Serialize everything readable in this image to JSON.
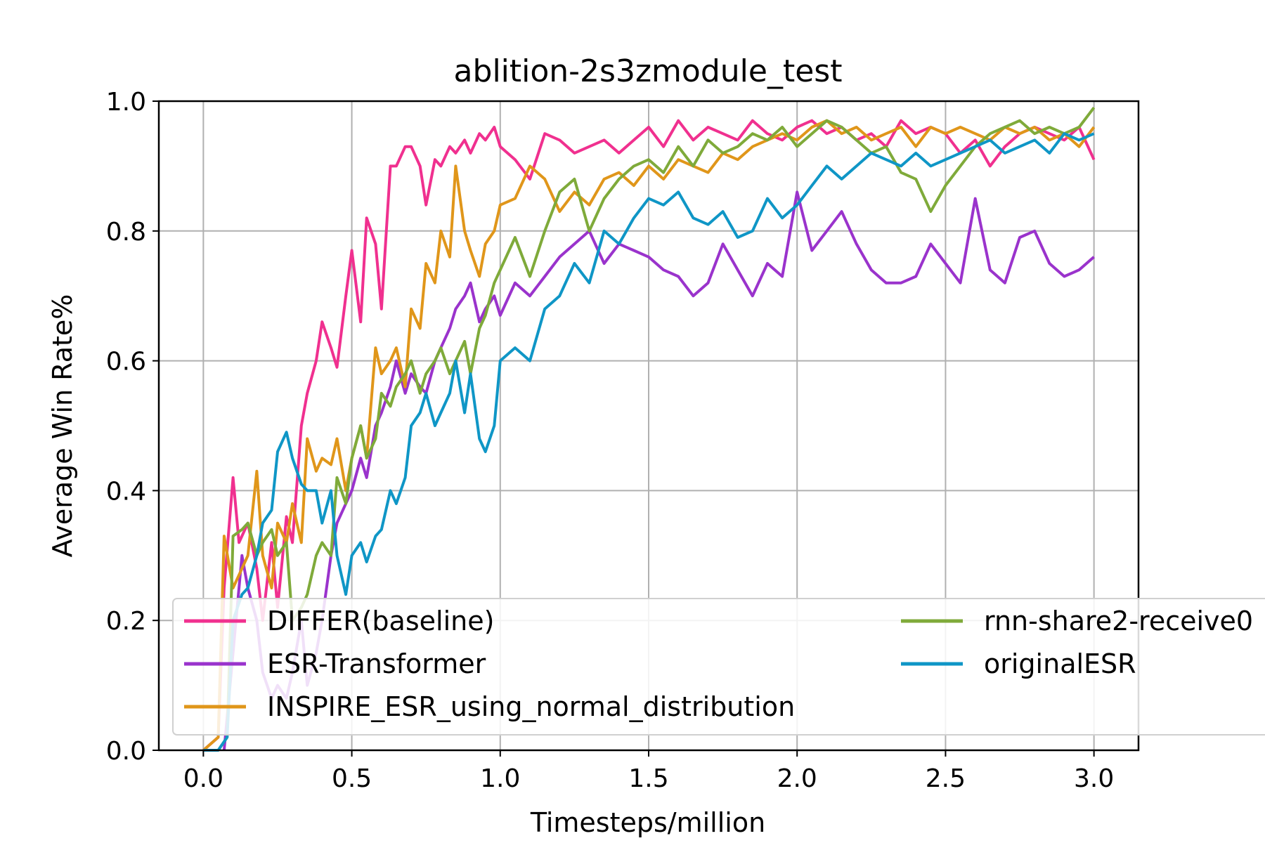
{
  "chart_data": {
    "type": "line",
    "title": "ablition-2s3zmodule_test",
    "xlabel": "Timesteps/million",
    "ylabel": "Average Win Rate%",
    "xlim": [
      -0.15,
      3.15
    ],
    "ylim": [
      0.0,
      1.0
    ],
    "xticks": [
      0.0,
      0.5,
      1.0,
      1.5,
      2.0,
      2.5,
      3.0
    ],
    "yticks": [
      0.0,
      0.2,
      0.4,
      0.6,
      0.8,
      1.0
    ],
    "xtick_labels": [
      "0.0",
      "0.5",
      "1.0",
      "1.5",
      "2.0",
      "2.5",
      "3.0"
    ],
    "ytick_labels": [
      "0.0",
      "0.2",
      "0.4",
      "0.6",
      "0.8",
      "1.0"
    ],
    "grid": true,
    "legend_position": "lower-left",
    "series": [
      {
        "name": "DIFFER(baseline)",
        "color": "#f0308f",
        "x": [
          0.0,
          0.05,
          0.07,
          0.1,
          0.12,
          0.15,
          0.18,
          0.2,
          0.23,
          0.25,
          0.28,
          0.3,
          0.33,
          0.35,
          0.38,
          0.4,
          0.43,
          0.45,
          0.48,
          0.5,
          0.53,
          0.55,
          0.58,
          0.6,
          0.63,
          0.65,
          0.68,
          0.7,
          0.73,
          0.75,
          0.78,
          0.8,
          0.83,
          0.85,
          0.88,
          0.9,
          0.93,
          0.95,
          0.98,
          1.0,
          1.05,
          1.1,
          1.15,
          1.2,
          1.25,
          1.3,
          1.35,
          1.4,
          1.45,
          1.5,
          1.55,
          1.6,
          1.65,
          1.7,
          1.75,
          1.8,
          1.85,
          1.9,
          1.95,
          2.0,
          2.05,
          2.1,
          2.15,
          2.2,
          2.25,
          2.3,
          2.35,
          2.4,
          2.45,
          2.5,
          2.55,
          2.6,
          2.65,
          2.7,
          2.75,
          2.8,
          2.85,
          2.9,
          2.95,
          3.0
        ],
        "values": [
          0.0,
          0.02,
          0.25,
          0.42,
          0.32,
          0.35,
          0.28,
          0.2,
          0.32,
          0.22,
          0.36,
          0.32,
          0.5,
          0.55,
          0.6,
          0.66,
          0.62,
          0.59,
          0.7,
          0.77,
          0.66,
          0.82,
          0.78,
          0.68,
          0.9,
          0.9,
          0.93,
          0.93,
          0.9,
          0.84,
          0.91,
          0.9,
          0.93,
          0.92,
          0.94,
          0.92,
          0.95,
          0.94,
          0.96,
          0.93,
          0.91,
          0.88,
          0.95,
          0.94,
          0.92,
          0.93,
          0.94,
          0.92,
          0.94,
          0.96,
          0.93,
          0.97,
          0.94,
          0.96,
          0.95,
          0.94,
          0.97,
          0.95,
          0.94,
          0.96,
          0.97,
          0.95,
          0.96,
          0.94,
          0.95,
          0.93,
          0.97,
          0.95,
          0.96,
          0.95,
          0.92,
          0.94,
          0.9,
          0.93,
          0.95,
          0.96,
          0.95,
          0.94,
          0.96,
          0.91
        ]
      },
      {
        "name": "ESR-Transformer",
        "color": "#9a33cc",
        "x": [
          0.07,
          0.1,
          0.13,
          0.15,
          0.18,
          0.2,
          0.23,
          0.25,
          0.28,
          0.3,
          0.33,
          0.35,
          0.38,
          0.4,
          0.43,
          0.45,
          0.48,
          0.5,
          0.53,
          0.55,
          0.58,
          0.6,
          0.63,
          0.65,
          0.68,
          0.7,
          0.73,
          0.75,
          0.78,
          0.8,
          0.83,
          0.85,
          0.88,
          0.9,
          0.93,
          0.95,
          0.98,
          1.0,
          1.05,
          1.1,
          1.15,
          1.2,
          1.25,
          1.3,
          1.35,
          1.4,
          1.45,
          1.5,
          1.55,
          1.6,
          1.65,
          1.7,
          1.75,
          1.8,
          1.85,
          1.9,
          1.95,
          2.0,
          2.05,
          2.1,
          2.15,
          2.2,
          2.25,
          2.3,
          2.35,
          2.4,
          2.45,
          2.5,
          2.55,
          2.6,
          2.65,
          2.7,
          2.75,
          2.8,
          2.85,
          2.9,
          2.95,
          3.0
        ],
        "values": [
          0.0,
          0.15,
          0.3,
          0.25,
          0.2,
          0.12,
          0.08,
          0.1,
          0.08,
          0.12,
          0.2,
          0.1,
          0.15,
          0.2,
          0.3,
          0.35,
          0.38,
          0.4,
          0.45,
          0.42,
          0.5,
          0.52,
          0.56,
          0.6,
          0.55,
          0.58,
          0.56,
          0.55,
          0.6,
          0.62,
          0.65,
          0.68,
          0.7,
          0.72,
          0.66,
          0.68,
          0.7,
          0.67,
          0.72,
          0.7,
          0.73,
          0.76,
          0.78,
          0.8,
          0.75,
          0.78,
          0.77,
          0.76,
          0.74,
          0.73,
          0.7,
          0.72,
          0.78,
          0.74,
          0.7,
          0.75,
          0.73,
          0.86,
          0.77,
          0.8,
          0.83,
          0.78,
          0.74,
          0.72,
          0.72,
          0.73,
          0.78,
          0.75,
          0.72,
          0.85,
          0.74,
          0.72,
          0.79,
          0.8,
          0.75,
          0.73,
          0.74,
          0.76
        ]
      },
      {
        "name": "INSPIRE_ESR_using_normal_distribution",
        "color": "#e0961a",
        "x": [
          0.0,
          0.05,
          0.07,
          0.1,
          0.13,
          0.15,
          0.18,
          0.2,
          0.23,
          0.25,
          0.28,
          0.3,
          0.33,
          0.35,
          0.38,
          0.4,
          0.43,
          0.45,
          0.48,
          0.5,
          0.53,
          0.55,
          0.58,
          0.6,
          0.63,
          0.65,
          0.68,
          0.7,
          0.73,
          0.75,
          0.78,
          0.8,
          0.83,
          0.85,
          0.88,
          0.9,
          0.93,
          0.95,
          0.98,
          1.0,
          1.05,
          1.1,
          1.15,
          1.2,
          1.25,
          1.3,
          1.35,
          1.4,
          1.45,
          1.5,
          1.55,
          1.6,
          1.65,
          1.7,
          1.75,
          1.8,
          1.85,
          1.9,
          1.95,
          2.0,
          2.05,
          2.1,
          2.15,
          2.2,
          2.25,
          2.3,
          2.35,
          2.4,
          2.45,
          2.5,
          2.55,
          2.6,
          2.65,
          2.7,
          2.75,
          2.8,
          2.85,
          2.9,
          2.95,
          3.0
        ],
        "values": [
          0.0,
          0.02,
          0.33,
          0.25,
          0.28,
          0.3,
          0.43,
          0.3,
          0.25,
          0.35,
          0.32,
          0.38,
          0.32,
          0.48,
          0.43,
          0.45,
          0.44,
          0.48,
          0.4,
          0.45,
          0.5,
          0.45,
          0.62,
          0.58,
          0.6,
          0.62,
          0.56,
          0.68,
          0.65,
          0.75,
          0.72,
          0.8,
          0.76,
          0.9,
          0.8,
          0.77,
          0.73,
          0.78,
          0.8,
          0.84,
          0.85,
          0.9,
          0.88,
          0.83,
          0.86,
          0.84,
          0.88,
          0.89,
          0.87,
          0.9,
          0.88,
          0.91,
          0.9,
          0.89,
          0.92,
          0.91,
          0.93,
          0.94,
          0.95,
          0.94,
          0.96,
          0.97,
          0.95,
          0.96,
          0.94,
          0.95,
          0.96,
          0.93,
          0.96,
          0.95,
          0.96,
          0.95,
          0.94,
          0.96,
          0.95,
          0.96,
          0.94,
          0.95,
          0.93,
          0.96
        ]
      },
      {
        "name": "rnn-share2-receive0",
        "color": "#7faa3a",
        "x": [
          0.0,
          0.05,
          0.08,
          0.1,
          0.13,
          0.15,
          0.18,
          0.2,
          0.23,
          0.25,
          0.28,
          0.3,
          0.33,
          0.35,
          0.38,
          0.4,
          0.43,
          0.45,
          0.48,
          0.5,
          0.53,
          0.55,
          0.58,
          0.6,
          0.63,
          0.65,
          0.68,
          0.7,
          0.73,
          0.75,
          0.78,
          0.8,
          0.83,
          0.85,
          0.88,
          0.9,
          0.93,
          0.95,
          0.98,
          1.0,
          1.05,
          1.1,
          1.15,
          1.2,
          1.25,
          1.3,
          1.35,
          1.4,
          1.45,
          1.5,
          1.55,
          1.6,
          1.65,
          1.7,
          1.75,
          1.8,
          1.85,
          1.9,
          1.95,
          2.0,
          2.05,
          2.1,
          2.15,
          2.2,
          2.25,
          2.3,
          2.35,
          2.4,
          2.45,
          2.5,
          2.55,
          2.6,
          2.65,
          2.7,
          2.75,
          2.8,
          2.85,
          2.9,
          2.95,
          3.0
        ],
        "values": [
          0.0,
          0.0,
          0.02,
          0.33,
          0.34,
          0.35,
          0.3,
          0.32,
          0.34,
          0.3,
          0.32,
          0.2,
          0.22,
          0.24,
          0.3,
          0.32,
          0.3,
          0.42,
          0.38,
          0.45,
          0.5,
          0.45,
          0.48,
          0.55,
          0.53,
          0.56,
          0.58,
          0.6,
          0.55,
          0.58,
          0.6,
          0.62,
          0.58,
          0.6,
          0.63,
          0.58,
          0.65,
          0.67,
          0.72,
          0.74,
          0.79,
          0.73,
          0.8,
          0.86,
          0.88,
          0.8,
          0.85,
          0.88,
          0.9,
          0.91,
          0.89,
          0.93,
          0.9,
          0.94,
          0.92,
          0.93,
          0.95,
          0.94,
          0.96,
          0.93,
          0.95,
          0.97,
          0.96,
          0.94,
          0.92,
          0.93,
          0.89,
          0.88,
          0.83,
          0.87,
          0.9,
          0.93,
          0.95,
          0.96,
          0.97,
          0.95,
          0.96,
          0.95,
          0.96,
          0.99
        ]
      },
      {
        "name": "originalESR",
        "color": "#0f96c6",
        "x": [
          0.0,
          0.05,
          0.08,
          0.1,
          0.13,
          0.15,
          0.18,
          0.2,
          0.23,
          0.25,
          0.28,
          0.3,
          0.33,
          0.35,
          0.38,
          0.4,
          0.43,
          0.45,
          0.48,
          0.5,
          0.53,
          0.55,
          0.58,
          0.6,
          0.63,
          0.65,
          0.68,
          0.7,
          0.73,
          0.75,
          0.78,
          0.8,
          0.83,
          0.85,
          0.88,
          0.9,
          0.93,
          0.95,
          0.98,
          1.0,
          1.05,
          1.1,
          1.15,
          1.2,
          1.25,
          1.3,
          1.35,
          1.4,
          1.45,
          1.5,
          1.55,
          1.6,
          1.65,
          1.7,
          1.75,
          1.8,
          1.85,
          1.9,
          1.95,
          2.0,
          2.05,
          2.1,
          2.15,
          2.2,
          2.25,
          2.3,
          2.35,
          2.4,
          2.45,
          2.5,
          2.55,
          2.6,
          2.65,
          2.7,
          2.75,
          2.8,
          2.85,
          2.9,
          2.95,
          3.0
        ],
        "values": [
          0.0,
          0.0,
          0.02,
          0.2,
          0.24,
          0.25,
          0.3,
          0.35,
          0.37,
          0.46,
          0.49,
          0.45,
          0.41,
          0.4,
          0.4,
          0.35,
          0.4,
          0.3,
          0.24,
          0.3,
          0.32,
          0.29,
          0.33,
          0.34,
          0.4,
          0.38,
          0.42,
          0.5,
          0.52,
          0.55,
          0.5,
          0.52,
          0.55,
          0.6,
          0.52,
          0.58,
          0.48,
          0.46,
          0.5,
          0.6,
          0.62,
          0.6,
          0.68,
          0.7,
          0.75,
          0.72,
          0.8,
          0.78,
          0.82,
          0.85,
          0.84,
          0.86,
          0.82,
          0.81,
          0.83,
          0.79,
          0.8,
          0.85,
          0.82,
          0.84,
          0.87,
          0.9,
          0.88,
          0.9,
          0.92,
          0.91,
          0.9,
          0.92,
          0.9,
          0.91,
          0.92,
          0.93,
          0.94,
          0.92,
          0.93,
          0.94,
          0.92,
          0.95,
          0.94,
          0.95
        ]
      }
    ]
  }
}
